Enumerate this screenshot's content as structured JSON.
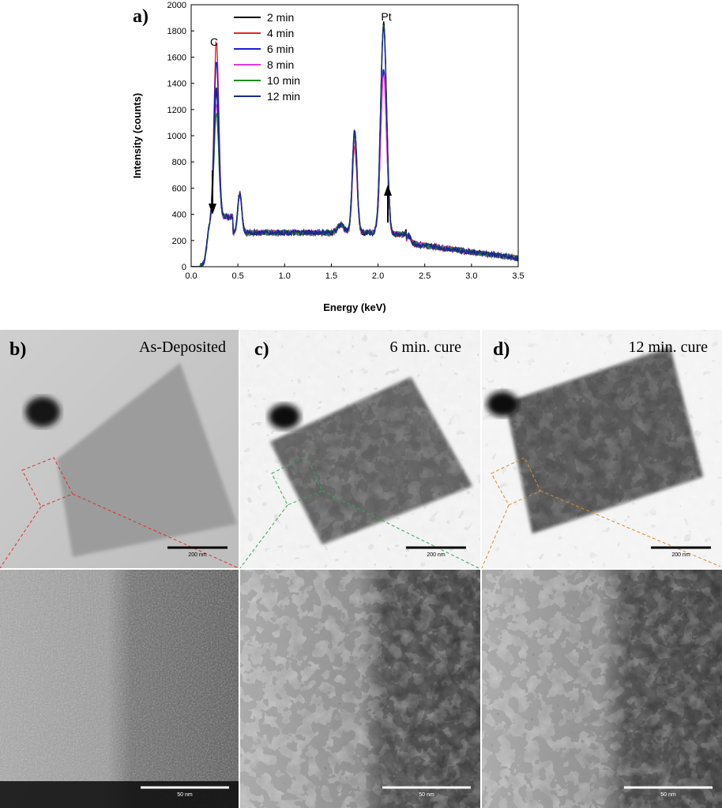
{
  "figure": {
    "panel_a_letter": "a)",
    "panels": [
      {
        "letter": "b)",
        "title": "As-Deposited",
        "scale_top": "200 nm",
        "scale_bottom": "50 nm",
        "guide_color": "#e0302e",
        "state": "as-deposited"
      },
      {
        "letter": "c)",
        "title": "6 min. cure",
        "scale_top": "200 nm",
        "scale_bottom": "50 nm",
        "guide_color": "#3aa35a",
        "state": "6min"
      },
      {
        "letter": "d)",
        "title": "12 min. cure",
        "scale_top": "200 nm",
        "scale_bottom": "50 nm",
        "guide_color": "#d98a2b",
        "state": "12min"
      }
    ]
  },
  "chart_data": {
    "type": "line",
    "title": "",
    "xlabel": "Energy (keV)",
    "ylabel": "Intensity (counts)",
    "xlim": [
      0.0,
      3.5
    ],
    "ylim": [
      0,
      2000
    ],
    "xticks": [
      "0.0",
      "0.5",
      "1.0",
      "1.5",
      "2.0",
      "2.5",
      "3.0",
      "3.5"
    ],
    "yticks": [
      "0",
      "200",
      "400",
      "600",
      "800",
      "1000",
      "1200",
      "1400",
      "1600",
      "1800",
      "2000"
    ],
    "legend_position": "top-left",
    "annotations": {
      "carbon_peak": "C",
      "platinum_peak": "Pt",
      "carbon_arrow": "down",
      "platinum_arrow": "up"
    },
    "series": [
      {
        "name": "2 min",
        "color": "#000000",
        "c_peak": 1270,
        "pt_peak": 1830,
        "p_peak": 1070
      },
      {
        "name": "4 min",
        "color": "#e8242a",
        "c_peak": 1650,
        "pt_peak": 1460,
        "p_peak": 950
      },
      {
        "name": "6 min",
        "color": "#1c1cd6",
        "c_peak": 1500,
        "pt_peak": 1480,
        "p_peak": 1090
      },
      {
        "name": "8 min",
        "color": "#e33ae3",
        "c_peak": 1170,
        "pt_peak": 1440,
        "p_peak": 1010
      },
      {
        "name": "10 min",
        "color": "#1f8a1f",
        "c_peak": 1100,
        "pt_peak": 1840,
        "p_peak": 1050
      },
      {
        "name": "12 min",
        "color": "#1a2a8a",
        "c_peak": 1280,
        "pt_peak": 1800,
        "p_peak": 1080
      }
    ],
    "peaks_keV": {
      "carbon": 0.27,
      "oxygen": 0.52,
      "phosphorus": 1.75,
      "platinum": 2.06
    }
  }
}
